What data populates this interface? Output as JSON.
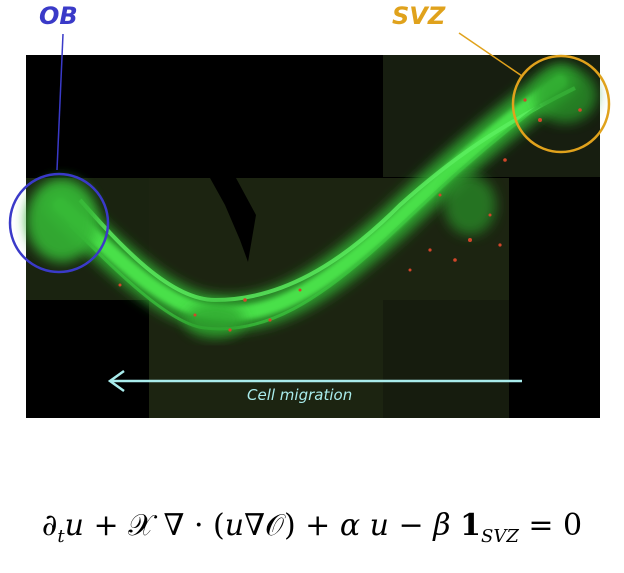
{
  "labels": {
    "ob": "OB",
    "svz": "SVZ",
    "migration": "Cell migration"
  },
  "colors": {
    "ob": "#3a3ac8",
    "svz": "#e0a21c",
    "migration_arrow": "#a9ecec",
    "cells_green": "#3fd83f",
    "cells_red": "#d2462a"
  },
  "equation": {
    "text": "∂tu + X ∇ · (u∇O) + α u − β 1SVZ = 0"
  }
}
